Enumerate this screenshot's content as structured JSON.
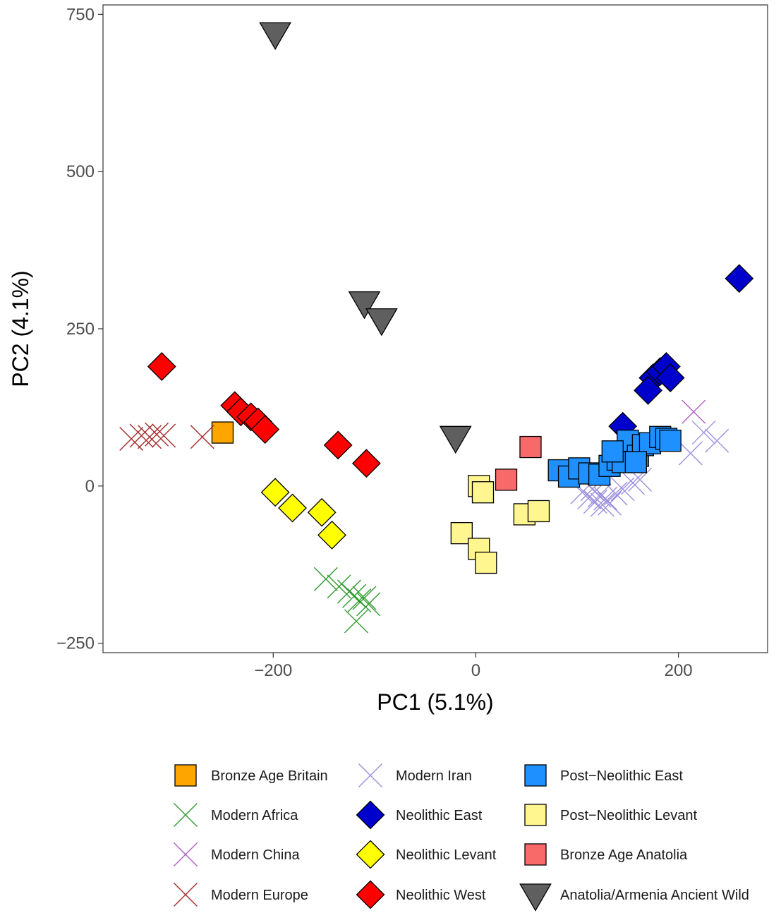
{
  "chart_data": {
    "type": "scatter",
    "xlabel": "PC1 (5.1%)",
    "ylabel": "PC2 (4.1%)",
    "xlim": [
      -368,
      288
    ],
    "ylim": [
      -265,
      765
    ],
    "xticks": [
      -200,
      0,
      200
    ],
    "yticks": [
      -250,
      0,
      250,
      500,
      750
    ],
    "xtick_labels": [
      "−200",
      "0",
      "200"
    ],
    "ytick_labels": [
      "−250",
      "0",
      "250",
      "500",
      "750"
    ],
    "grid": false,
    "legend_position": "bottom",
    "series": [
      {
        "name": "Bronze Age Britain",
        "shape": "square",
        "fill": "#FFA500",
        "stroke": "#000000",
        "points": [
          [
            -250,
            85
          ]
        ]
      },
      {
        "name": "Modern Africa",
        "shape": "cross",
        "fill": "none",
        "stroke": "#2E9B2E",
        "points": [
          [
            -148,
            -148
          ],
          [
            -135,
            -160
          ],
          [
            -125,
            -168
          ],
          [
            -120,
            -175
          ],
          [
            -115,
            -182
          ],
          [
            -110,
            -178
          ],
          [
            -106,
            -188
          ],
          [
            -118,
            -215
          ]
        ]
      },
      {
        "name": "Modern China",
        "shape": "cross",
        "fill": "none",
        "stroke": "#B05FC0",
        "points": [
          [
            215,
            118
          ]
        ]
      },
      {
        "name": "Modern  Europe",
        "shape": "cross",
        "fill": "none",
        "stroke": "#A52A2A",
        "points": [
          [
            -340,
            75
          ],
          [
            -330,
            80
          ],
          [
            -322,
            78
          ],
          [
            -315,
            82
          ],
          [
            -308,
            80
          ],
          [
            -270,
            78
          ]
        ]
      },
      {
        "name": "Modern Iran",
        "shape": "cross",
        "fill": "none",
        "stroke": "#9B8FE0",
        "points": [
          [
            105,
            -10
          ],
          [
            112,
            -18
          ],
          [
            118,
            -25
          ],
          [
            122,
            -15
          ],
          [
            128,
            -20
          ],
          [
            132,
            -28
          ],
          [
            138,
            -12
          ],
          [
            145,
            -5
          ],
          [
            125,
            -30
          ],
          [
            115,
            -5
          ],
          [
            155,
            5
          ],
          [
            162,
            10
          ],
          [
            212,
            52
          ],
          [
            238,
            72
          ],
          [
            225,
            85
          ]
        ]
      },
      {
        "name": "Neolithic East",
        "shape": "diamond",
        "fill": "#0000CD",
        "stroke": "#000000",
        "points": [
          [
            260,
            330
          ],
          [
            175,
            172
          ],
          [
            182,
            182
          ],
          [
            188,
            190
          ],
          [
            192,
            172
          ],
          [
            170,
            152
          ],
          [
            145,
            95
          ]
        ]
      },
      {
        "name": "Neolithic Levant",
        "shape": "diamond",
        "fill": "#FFFF00",
        "stroke": "#000000",
        "points": [
          [
            -198,
            -10
          ],
          [
            -181,
            -35
          ],
          [
            -152,
            -42
          ],
          [
            -142,
            -78
          ]
        ]
      },
      {
        "name": "Neolithic West",
        "shape": "diamond",
        "fill": "#FF0000",
        "stroke": "#000000",
        "points": [
          [
            -310,
            190
          ],
          [
            -238,
            128
          ],
          [
            -232,
            118
          ],
          [
            -222,
            110
          ],
          [
            -215,
            102
          ],
          [
            -208,
            90
          ],
          [
            -136,
            65
          ],
          [
            -108,
            36
          ]
        ]
      },
      {
        "name": "Post−Neolithic East",
        "shape": "square",
        "fill": "#1E90FF",
        "stroke": "#000000",
        "points": [
          [
            82,
            25
          ],
          [
            92,
            15
          ],
          [
            102,
            28
          ],
          [
            112,
            20
          ],
          [
            122,
            18
          ],
          [
            132,
            32
          ],
          [
            140,
            42
          ],
          [
            150,
            55
          ],
          [
            150,
            72
          ],
          [
            160,
            48
          ],
          [
            165,
            65
          ],
          [
            172,
            68
          ],
          [
            182,
            78
          ],
          [
            188,
            75
          ],
          [
            145,
            38
          ],
          [
            158,
            38
          ],
          [
            135,
            55
          ],
          [
            192,
            72
          ]
        ]
      },
      {
        "name": "Post−Neolithic Levant",
        "shape": "square",
        "fill": "#FFF68F",
        "stroke": "#000000",
        "points": [
          [
            3,
            0
          ],
          [
            7,
            -10
          ],
          [
            -14,
            -75
          ],
          [
            3,
            -100
          ],
          [
            10,
            -122
          ],
          [
            48,
            -45
          ],
          [
            62,
            -40
          ]
        ]
      },
      {
        "name": "Bronze Age Anatolia",
        "shape": "square",
        "fill": "#F86A6A",
        "stroke": "#000000",
        "points": [
          [
            30,
            10
          ],
          [
            54,
            62
          ]
        ]
      },
      {
        "name": "Anatolia/Armenia Ancient Wild",
        "shape": "triangle-down",
        "fill": "#5F5F5F",
        "stroke": "#000000",
        "points": [
          [
            -198,
            720
          ],
          [
            -110,
            292
          ],
          [
            -93,
            265
          ],
          [
            -20,
            78
          ]
        ]
      }
    ]
  }
}
